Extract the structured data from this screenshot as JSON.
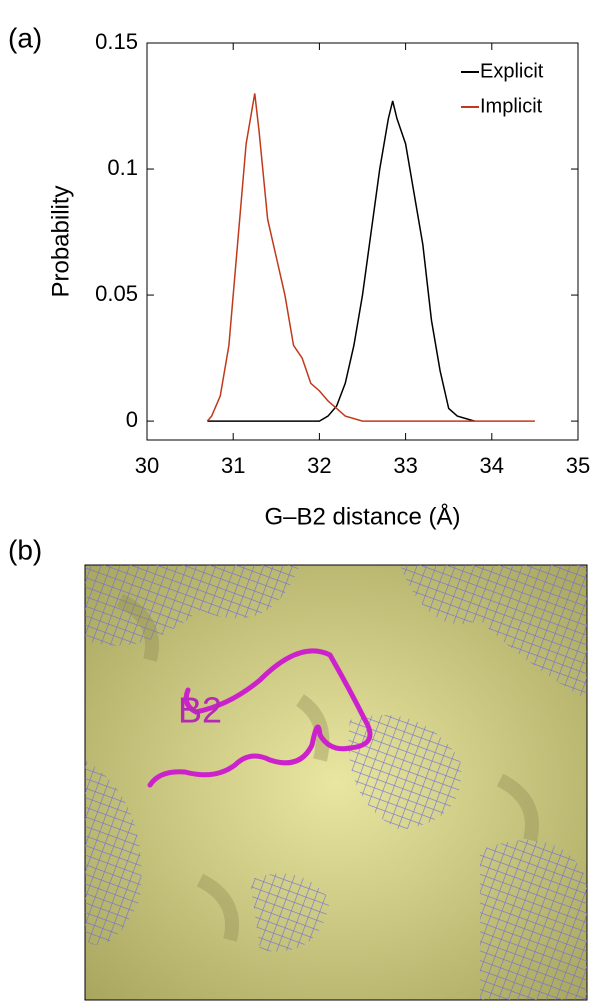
{
  "panels": {
    "a": "(a)",
    "b": "(b)"
  },
  "chart_data": {
    "type": "line",
    "xlabel": "G–B2 distance (Å)",
    "ylabel": "Probability",
    "xlim": [
      30,
      35
    ],
    "ylim": [
      -0.0075,
      0.15
    ],
    "xticks": [
      30,
      31,
      32,
      33,
      34,
      35
    ],
    "yticks": [
      0,
      0.05,
      0.1,
      0.15
    ],
    "legend": "upper right",
    "series": [
      {
        "name": "Explicit",
        "color": "#000000",
        "x": [
          30.7,
          32.0,
          32.1,
          32.2,
          32.3,
          32.4,
          32.5,
          32.6,
          32.7,
          32.8,
          32.85,
          32.9,
          33.0,
          33.1,
          33.2,
          33.3,
          33.4,
          33.5,
          33.6,
          33.8
        ],
        "values": [
          0,
          0,
          0.002,
          0.006,
          0.015,
          0.03,
          0.05,
          0.075,
          0.1,
          0.12,
          0.127,
          0.12,
          0.11,
          0.09,
          0.07,
          0.04,
          0.02,
          0.005,
          0.002,
          0
        ]
      },
      {
        "name": "Implicit",
        "color": "#c0391b",
        "x": [
          30.7,
          30.75,
          30.85,
          30.95,
          31.05,
          31.15,
          31.25,
          31.3,
          31.4,
          31.5,
          31.6,
          31.7,
          31.8,
          31.9,
          32.0,
          32.1,
          32.2,
          32.3,
          32.5,
          34.5
        ],
        "values": [
          0,
          0.002,
          0.01,
          0.03,
          0.07,
          0.11,
          0.13,
          0.115,
          0.08,
          0.065,
          0.05,
          0.03,
          0.025,
          0.015,
          0.012,
          0.008,
          0.005,
          0.002,
          0,
          0
        ]
      }
    ]
  },
  "image": {
    "label": "B2"
  }
}
